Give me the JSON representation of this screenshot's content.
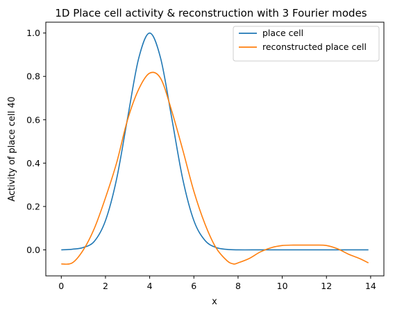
{
  "chart_data": {
    "type": "line",
    "title": "1D Place cell activity & reconstruction with 3 Fourier modes",
    "xlabel": "x",
    "ylabel": "Activity of place cell 40",
    "xlim": [
      -0.7,
      14.6
    ],
    "ylim": [
      -0.12,
      1.05
    ],
    "x_ticks": [
      0,
      2,
      4,
      6,
      8,
      10,
      12,
      14
    ],
    "y_ticks": [
      0.0,
      0.2,
      0.4,
      0.6,
      0.8,
      1.0
    ],
    "grid": false,
    "legend_position": "top-right",
    "series": [
      {
        "name": "place cell",
        "color": "#1f77b4",
        "x": [
          0,
          0.5,
          1.0,
          1.5,
          2.0,
          2.5,
          3.0,
          3.5,
          4.0,
          4.5,
          5.0,
          5.5,
          6.0,
          6.5,
          7.0,
          7.5,
          8.0,
          9.0,
          10.0,
          11.0,
          12.0,
          13.0,
          13.9
        ],
        "y": [
          0.0,
          0.003,
          0.011,
          0.04,
          0.135,
          0.325,
          0.607,
          0.882,
          1.0,
          0.882,
          0.607,
          0.325,
          0.135,
          0.044,
          0.011,
          0.002,
          0.0,
          0.0,
          0.0,
          0.0,
          0.0,
          0.0,
          0.0
        ]
      },
      {
        "name": "reconstructed place cell",
        "color": "#ff7f0e",
        "x": [
          0,
          0.5,
          1.0,
          1.5,
          2.0,
          2.5,
          3.0,
          3.5,
          4.0,
          4.5,
          5.0,
          5.5,
          6.0,
          6.5,
          7.0,
          7.5,
          7.8,
          8.0,
          8.5,
          9.0,
          9.5,
          10.0,
          10.5,
          11.0,
          11.5,
          12.0,
          12.5,
          13.0,
          13.5,
          13.9
        ],
        "y": [
          -0.065,
          -0.06,
          0.0,
          0.1,
          0.24,
          0.4,
          0.6,
          0.74,
          0.815,
          0.79,
          0.64,
          0.46,
          0.27,
          0.12,
          0.01,
          -0.05,
          -0.065,
          -0.06,
          -0.04,
          -0.01,
          0.01,
          0.02,
          0.022,
          0.022,
          0.022,
          0.02,
          0.005,
          -0.02,
          -0.04,
          -0.06
        ]
      }
    ]
  }
}
